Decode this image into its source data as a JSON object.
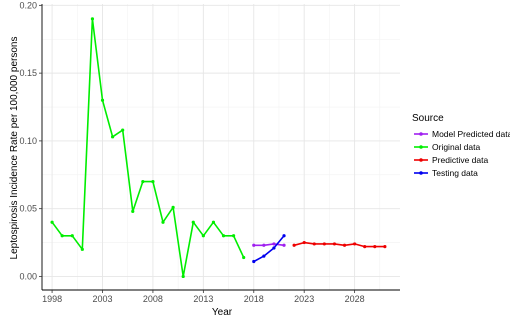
{
  "chart_data": {
    "type": "line",
    "title": "",
    "xlabel": "Year",
    "ylabel": "Leptospirosis Incidence Rate per 100,000 persons",
    "xlim": [
      1997,
      2032.5
    ],
    "ylim": [
      -0.01,
      0.201
    ],
    "x_ticks": [
      1998,
      2003,
      2008,
      2013,
      2018,
      2023,
      2028
    ],
    "y_ticks": [
      0.0,
      0.05,
      0.1,
      0.15,
      0.2
    ],
    "y_tick_labels": [
      "0.00",
      "0.05",
      "0.10",
      "0.15",
      "0.20"
    ],
    "grid": true,
    "legend": {
      "title": "Source",
      "position": "right"
    },
    "series": [
      {
        "name": "Model Predicted data",
        "color": "#a020f0",
        "x": [
          2018,
          2019,
          2020,
          2021
        ],
        "y": [
          0.023,
          0.023,
          0.024,
          0.023
        ]
      },
      {
        "name": "Original data",
        "color": "#00ee00",
        "x": [
          1998,
          1999,
          2000,
          2001,
          2002,
          2003,
          2004,
          2005,
          2006,
          2007,
          2008,
          2009,
          2010,
          2011,
          2012,
          2013,
          2014,
          2015,
          2016,
          2017
        ],
        "y": [
          0.04,
          0.03,
          0.03,
          0.02,
          0.19,
          0.13,
          0.103,
          0.108,
          0.048,
          0.07,
          0.07,
          0.04,
          0.051,
          0.0,
          0.04,
          0.03,
          0.04,
          0.03,
          0.03,
          0.014
        ]
      },
      {
        "name": "Predictive data",
        "color": "#ee0000",
        "x": [
          2022,
          2023,
          2024,
          2025,
          2026,
          2027,
          2028,
          2029,
          2030,
          2031
        ],
        "y": [
          0.023,
          0.025,
          0.024,
          0.024,
          0.024,
          0.023,
          0.024,
          0.022,
          0.022,
          0.022
        ]
      },
      {
        "name": "Testing data",
        "color": "#0000ee",
        "x": [
          2018,
          2019,
          2020,
          2021
        ],
        "y": [
          0.011,
          0.015,
          0.021,
          0.03
        ]
      }
    ]
  }
}
